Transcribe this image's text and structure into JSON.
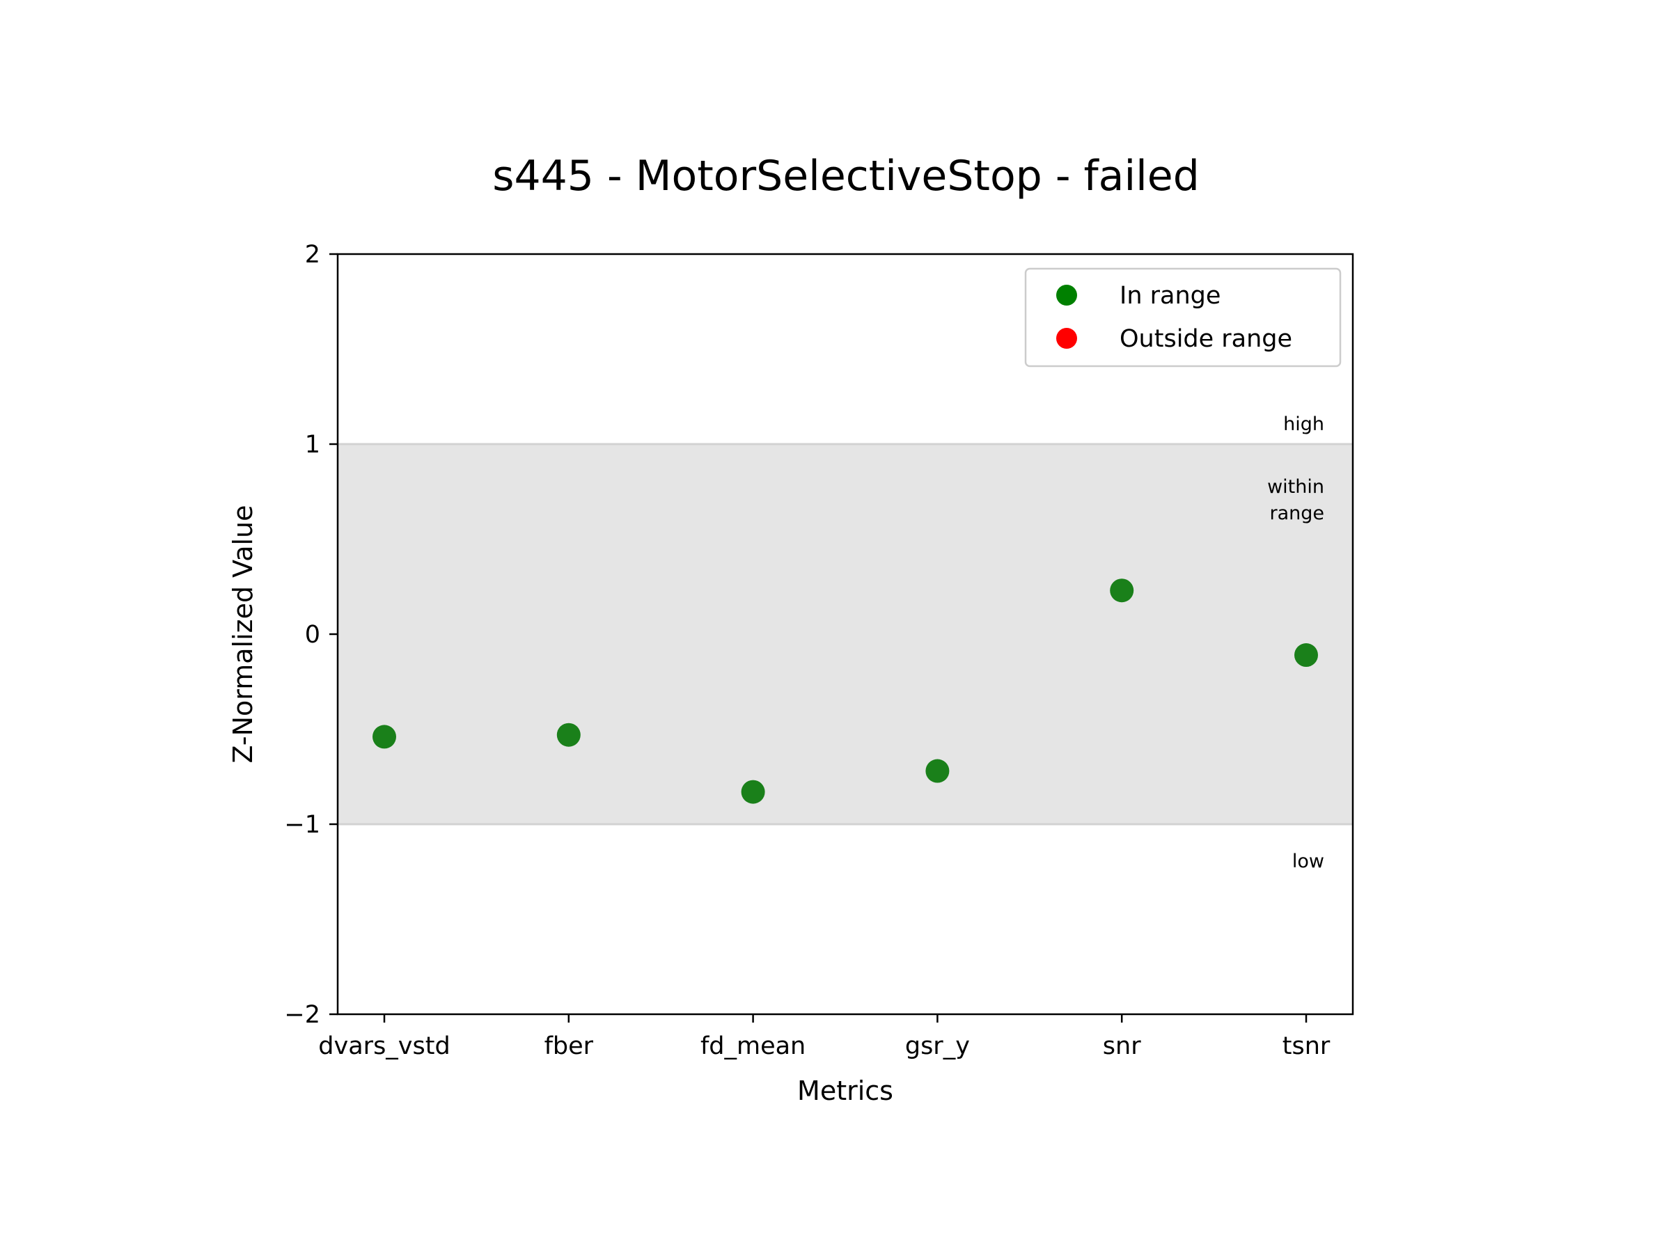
{
  "chart_data": {
    "type": "scatter",
    "title": "s445 - MotorSelectiveStop - failed",
    "xlabel": "Metrics",
    "ylabel": "Z-Normalized Value",
    "categories": [
      "dvars_vstd",
      "fber",
      "fd_mean",
      "gsr_y",
      "snr",
      "tsnr"
    ],
    "values": [
      -0.54,
      -0.53,
      -0.83,
      -0.72,
      0.23,
      -0.11
    ],
    "ylim": [
      -2,
      2
    ],
    "yticks": [
      2,
      1,
      0,
      -1,
      -2
    ],
    "ytick_labels": [
      "2",
      "1",
      "0",
      "−1",
      "−2"
    ],
    "range_band": [
      -1,
      1
    ],
    "zone_labels": {
      "high": "high",
      "within_line1": "within",
      "within_line2": "range",
      "low": "low"
    },
    "legend": {
      "position": "upper right",
      "entries": [
        {
          "label": "In range",
          "color": "#008000"
        },
        {
          "label": "Outside range",
          "color": "#ff0000"
        }
      ]
    },
    "point_color": "#1a801a",
    "band_color": "#e5e5e5",
    "grid": false
  }
}
